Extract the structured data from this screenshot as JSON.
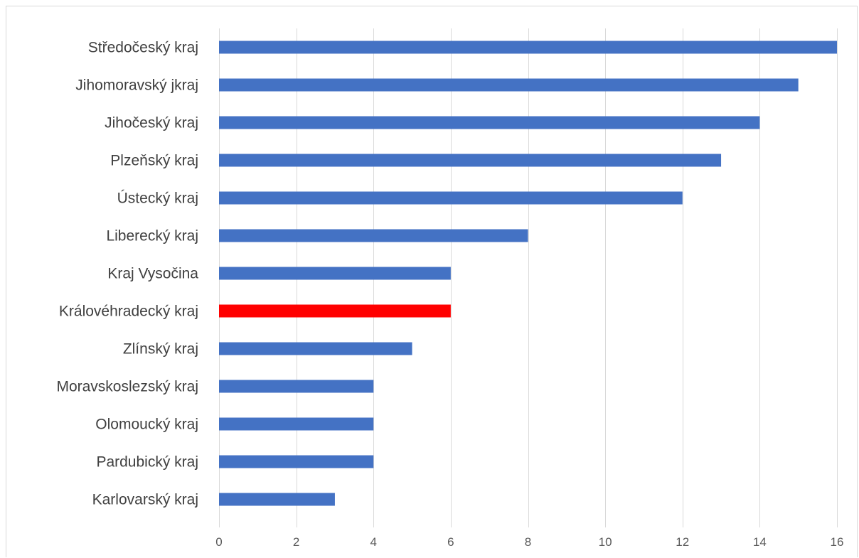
{
  "chart_data": {
    "type": "bar",
    "orientation": "horizontal",
    "title": "",
    "xlabel": "",
    "ylabel": "",
    "categories": [
      "Středočeský kraj",
      "Jihomoravský jkraj",
      "Jihočeský kraj",
      "Plzeňský kraj",
      "Ústecký kraj",
      "Liberecký kraj",
      "Kraj Vysočina",
      "Královéhradecký kraj",
      "Zlínský kraj",
      "Moravskoslezský kraj",
      "Olomoucký kraj",
      "Pardubický kraj",
      "Karlovarský kraj"
    ],
    "values": [
      16,
      15,
      14,
      13,
      12,
      8,
      6,
      6,
      5,
      4,
      4,
      4,
      3
    ],
    "highlight_index": 7,
    "xlim": [
      0,
      16
    ],
    "xticks": [
      "0",
      "2",
      "4",
      "6",
      "8",
      "10",
      "12",
      "14",
      "16"
    ],
    "grid": true,
    "legend": "none",
    "colors": {
      "bar": "#4472c4",
      "highlight": "#ff0000",
      "grid": "#d9d9d9",
      "label": "#404040",
      "tick": "#595959"
    }
  }
}
